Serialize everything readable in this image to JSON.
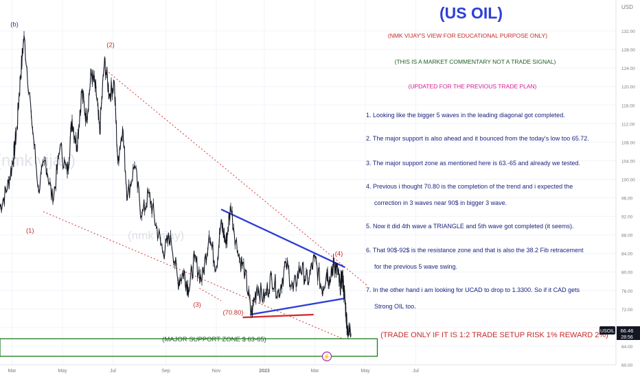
{
  "title": "(US OIL)",
  "header_notes": [
    {
      "text": "(NMK VIJAY'S VIEW FOR EDUCATIONAL PURPOSE ONLY)",
      "color": "#c62828"
    },
    {
      "text": "(THIS IS A MARKET COMMENTARY NOT A TRADE SIGNAL)",
      "color": "#1b5e20"
    },
    {
      "text": "(UPDATED FOR THE PREVIOUS TRADE PLAN)",
      "color": "#d81b96"
    }
  ],
  "commentary": [
    "1. Looking like the bigger 5 waves in the leading diagonal got completed.",
    "2. The major support is also ahead and it bounced from the today's low too 65.72.",
    "3. The major support zone as mentioned here is 63.-65 and already we tested.",
    "4. Previous i thought 70.80 is the completion of the trend and i expected the",
    "correction in 3 waves near 90$ in bigger 3 wave.",
    "5. Now it did 4th wave a TRIANGLE and 5th wave got completed (it seems).",
    "6. That 90$-92$ is the resistance zone and that is also the 38.2 Fib retracement",
    "for the previous 5 wave swing.",
    "7. In the other hand i am looking for UCAD to drop to 1.3300. So if it CAD gets",
    "Strong OIL too."
  ],
  "trade_note": "(TRADE ONLY IF IT IS 1:2 TRADE SETUP RISK 1% REWARD 2%)",
  "support_zone_label": "(MAJOR SUPPORT ZONE $ 63-65)",
  "watermarks": [
    "(nmk vijay)",
    "(nmk vijay)"
  ],
  "wave_labels": [
    {
      "text": "(b)",
      "x": 0.6,
      "y": 133,
      "color": "#283593"
    },
    {
      "text": "(2)",
      "x": 4.6,
      "y": 128.5,
      "color": "#c62828"
    },
    {
      "text": "(1)",
      "x": 1.25,
      "y": 88.5,
      "color": "#c62828"
    },
    {
      "text": "(3)",
      "x": 8.2,
      "y": 72.5,
      "color": "#c62828"
    },
    {
      "text": "(4)",
      "x": 14.1,
      "y": 83.5,
      "color": "#c62828"
    },
    {
      "text": "(70.80)",
      "x": 9.7,
      "y": 70.8,
      "color": "#c62828"
    }
  ],
  "colors": {
    "up": "#26a69a",
    "candle": "#131722",
    "triangle": "#2e3fd6",
    "trendline_red": "#d32f2f",
    "support_box": "#1b7a1b",
    "axis_text": "#787b86",
    "price_badge": "#131722",
    "commentary": "#1a237e"
  },
  "chart_data": {
    "type": "line",
    "symbol": "USOIL",
    "currency": "USD",
    "last_price": "66.46",
    "countdown": "28:56",
    "ylim": [
      60,
      136
    ],
    "y_ticks": [
      "60.00",
      "64.00",
      "68.00",
      "72.00",
      "76.00",
      "80.00",
      "84.00",
      "88.00",
      "92.00",
      "96.00",
      "100.00",
      "104.00",
      "108.00",
      "112.00",
      "116.00",
      "120.00",
      "124.00",
      "128.00",
      "132.00"
    ],
    "x_ticks": [
      "Mar",
      "May",
      "Jul",
      "Sep",
      "Nov",
      "2023",
      "Mar",
      "May",
      "Jul"
    ],
    "x_tick_pos": [
      0.5,
      2.6,
      4.7,
      6.9,
      9.0,
      11.0,
      13.1,
      15.2,
      17.3
    ],
    "series": [
      {
        "x": [
          0.0,
          0.3,
          0.55,
          0.7,
          0.85,
          1.0,
          1.3,
          1.6,
          1.9,
          2.2,
          2.5,
          2.8,
          3.0,
          3.2,
          3.4,
          3.6,
          3.8,
          4.0,
          4.15,
          4.35,
          4.55,
          4.75,
          4.9,
          5.1,
          5.3,
          5.6,
          5.9,
          6.2,
          6.5,
          6.8,
          7.1,
          7.4,
          7.65,
          7.85,
          8.1,
          8.4,
          8.7,
          9.0,
          9.2,
          9.4,
          9.6,
          9.9,
          10.2,
          10.45,
          10.7,
          11.0,
          11.3,
          11.6,
          11.9,
          12.2,
          12.5,
          12.8,
          13.1,
          13.4,
          13.6,
          13.75,
          13.9,
          14.05,
          14.15,
          14.25,
          14.35,
          14.45,
          14.6
        ],
        "y": [
          94,
          98,
          104,
          111,
          122,
          131,
          114,
          98,
          104,
          95,
          107,
          101,
          113,
          107,
          119,
          113,
          123,
          119,
          110,
          126,
          118,
          121,
          104,
          111,
          96,
          103,
          92,
          97,
          90,
          84,
          88,
          78,
          80,
          76,
          83,
          78,
          88,
          81,
          91,
          86,
          94,
          84,
          80,
          70.8,
          77,
          74,
          79,
          75.5,
          82,
          76,
          81,
          78,
          83,
          76,
          80,
          78,
          82,
          80,
          77,
          79,
          74,
          68,
          66.46
        ]
      }
    ],
    "triangle_lines": [
      {
        "x": [
          9.2,
          14.35
        ],
        "y": [
          93.5,
          81
        ]
      },
      {
        "x": [
          10.4,
          14.35
        ],
        "y": [
          70.8,
          74.3
        ]
      }
    ],
    "red_trendline": {
      "x": [
        10.1,
        13.05
      ],
      "y": [
        70.2,
        70.8
      ]
    },
    "channel_lines": [
      {
        "x": [
          4.3,
          15.3
        ],
        "y": [
          124,
          77
        ]
      },
      {
        "x": [
          1.8,
          14.3
        ],
        "y": [
          93,
          65.5
        ]
      },
      {
        "x": [
          8.3,
          9.2
        ],
        "y": [
          76.5,
          73.8
        ]
      }
    ],
    "support_zone": {
      "y": [
        63,
        65
      ],
      "x": [
        0,
        15.7
      ]
    }
  }
}
